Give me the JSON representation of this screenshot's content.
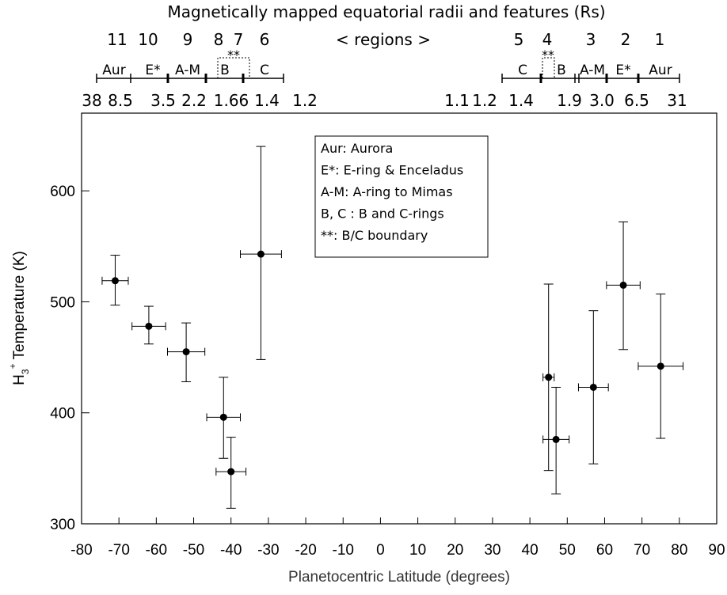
{
  "chart_data": {
    "type": "errorbar-scatter",
    "x_label": "Planetocentric Latitude (degrees)",
    "y_label": {
      "base": "H",
      "sub": "3",
      "sup": "+",
      "rest": " Temperature (K)"
    },
    "xlim": [
      -80,
      90
    ],
    "xticks": [
      -80,
      -70,
      -60,
      -50,
      -40,
      -30,
      -20,
      -10,
      0,
      10,
      20,
      30,
      40,
      50,
      60,
      70,
      80,
      90
    ],
    "ylim": [
      300,
      670
    ],
    "yticks": [
      300,
      400,
      500,
      600
    ],
    "color": "#000000",
    "series": [
      {
        "x": [
          -71,
          -62,
          -52,
          -42,
          -40,
          -32,
          45,
          47,
          57,
          65,
          75
        ],
        "values": [
          519,
          478,
          455,
          396,
          347,
          543,
          432,
          376,
          423,
          515,
          442
        ],
        "xerr": [
          3.5,
          4.5,
          5,
          4.5,
          4,
          5.5,
          1.5,
          3.5,
          4,
          4.5,
          6
        ],
        "yerr_minus": [
          22,
          16,
          27,
          37,
          33,
          95,
          84,
          49,
          69,
          58,
          65
        ],
        "yerr_plus": [
          23,
          18,
          26,
          36,
          31,
          97,
          84,
          47,
          69,
          57,
          65
        ]
      }
    ],
    "legend_lines": [
      "Aur:  Aurora",
      "E*: E-ring & Enceladus",
      "A-M: A-ring to Mimas",
      "B, C : B and C-rings",
      "**: B/C boundary"
    ],
    "top_annotations": {
      "title": "Magnetically mapped equatorial radii and features (Rs)",
      "regions_left": [
        "11",
        "10",
        "9",
        "8",
        "7",
        "6"
      ],
      "regions_center": "< regions >",
      "regions_right": [
        "5",
        "4",
        "3",
        "2",
        "1"
      ],
      "features_left": [
        "Aur",
        "E*",
        "A-M",
        "B",
        "C"
      ],
      "features_right": [
        "C",
        "B",
        "A-M",
        "E*",
        "Aur"
      ],
      "boundary_marker": "**",
      "radii_left": [
        "38",
        "8.5",
        "3.5",
        "2.2",
        "1.66",
        "1.4",
        "1.2"
      ],
      "radii_right": [
        "1.1",
        "1.2",
        "1.4",
        "1.9",
        "3.0",
        "6.5",
        "31"
      ]
    }
  }
}
